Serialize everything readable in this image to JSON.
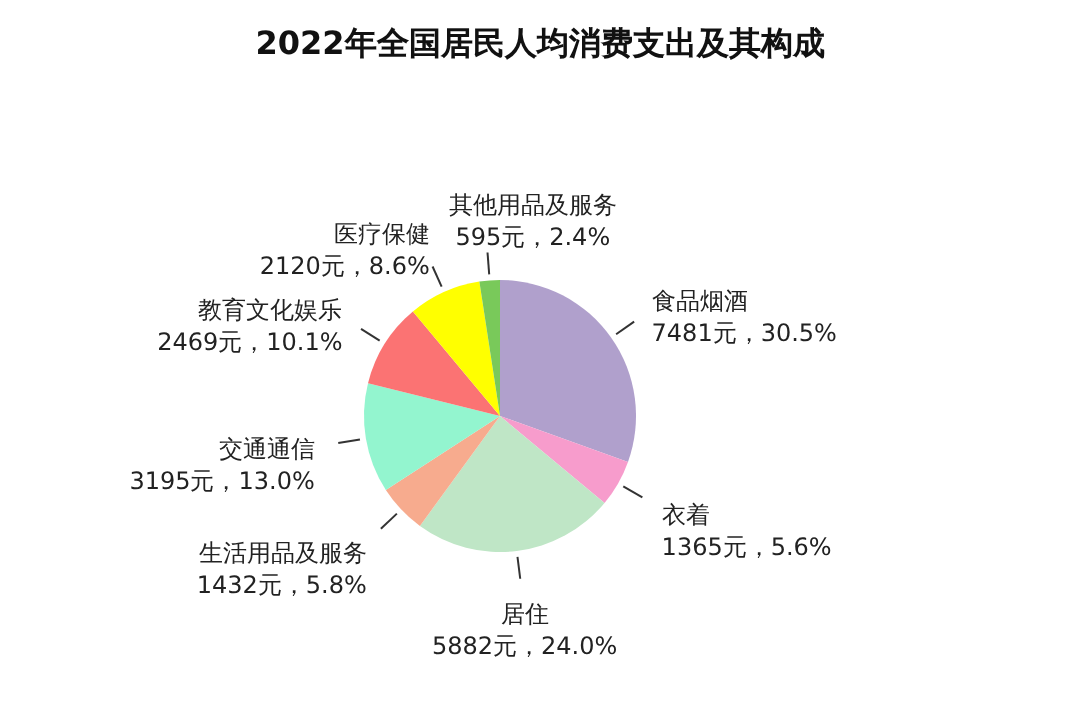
{
  "chart_data": {
    "type": "pie",
    "title": "2022年全国居民人均消费支出及其构成",
    "categories": [
      "食品烟酒",
      "衣着",
      "居住",
      "生活用品及服务",
      "交通通信",
      "教育文化娱乐",
      "医疗保健",
      "其他用品及服务"
    ],
    "values": [
      7481,
      1365,
      5882,
      1432,
      3195,
      2469,
      2120,
      595
    ],
    "value_labels": [
      "7481元，30.5%",
      "1365元，5.6%",
      "5882元，24.0%",
      "1432元，5.8%",
      "3195元，13.0%",
      "2469元，10.1%",
      "2120元，8.6%",
      "595元，2.4%"
    ],
    "colors": [
      "#b0a0cc",
      "#f79ccc",
      "#bfe6c6",
      "#f7ab8e",
      "#93f5cf",
      "#fb7373",
      "#ffff00",
      "#79c95a"
    ]
  }
}
